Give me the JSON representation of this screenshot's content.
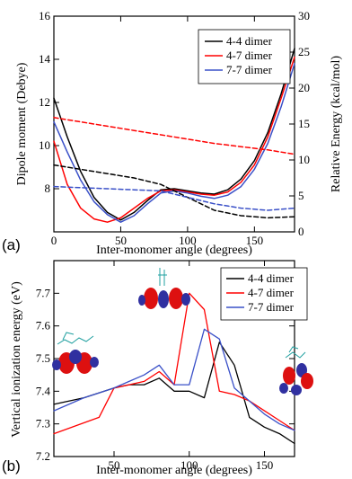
{
  "chart_data": [
    {
      "type": "line",
      "panel_label": "(a)",
      "xlabel": "Inter-monomer angle (degrees)",
      "ylabel": "Dipole moment (Debye)",
      "y2label": "Relative Energy (kcal/mol)",
      "xlim": [
        0,
        180
      ],
      "ylim": [
        6,
        16
      ],
      "y2lim": [
        0,
        30
      ],
      "x_ticks": [
        "0",
        "50",
        "100",
        "150"
      ],
      "y_ticks": [
        "8",
        "10",
        "12",
        "14",
        "16"
      ],
      "y2_ticks": [
        "0",
        "5",
        "10",
        "15",
        "20",
        "25",
        "30"
      ],
      "legend": [
        "4-4 dimer",
        "4-7 dimer",
        "7-7 dimer"
      ],
      "legend_position": "top-right",
      "series": [
        {
          "name": "4-4 dimer",
          "style": "solid",
          "color": "#000000",
          "x": [
            0,
            10,
            20,
            30,
            40,
            50,
            60,
            70,
            80,
            90,
            100,
            110,
            120,
            130,
            140,
            150,
            160,
            170,
            180
          ],
          "y": [
            12.2,
            10.4,
            8.8,
            7.6,
            6.9,
            6.55,
            6.9,
            7.45,
            7.95,
            8.0,
            7.9,
            7.8,
            7.75,
            7.95,
            8.45,
            9.3,
            10.6,
            12.4,
            14.5
          ]
        },
        {
          "name": "4-7 dimer",
          "style": "solid",
          "color": "#ff0000",
          "x": [
            0,
            10,
            20,
            30,
            40,
            50,
            60,
            70,
            80,
            90,
            100,
            110,
            120,
            130,
            140,
            150,
            160,
            170,
            180
          ],
          "y": [
            10.2,
            8.2,
            7.1,
            6.6,
            6.45,
            6.65,
            7.1,
            7.55,
            7.9,
            7.95,
            7.85,
            7.75,
            7.7,
            7.85,
            8.3,
            9.1,
            10.4,
            12.2,
            14.1
          ]
        },
        {
          "name": "7-7 dimer",
          "style": "solid",
          "color": "#3a50c8",
          "x": [
            0,
            10,
            20,
            30,
            40,
            50,
            60,
            70,
            80,
            90,
            100,
            110,
            120,
            130,
            140,
            150,
            160,
            170,
            180
          ],
          "y": [
            11.1,
            9.7,
            8.4,
            7.4,
            6.8,
            6.45,
            6.75,
            7.3,
            7.8,
            7.9,
            7.8,
            7.65,
            7.55,
            7.7,
            8.1,
            8.9,
            10.1,
            11.8,
            13.8
          ]
        },
        {
          "name": "",
          "style": "dashed",
          "color": "#000000",
          "x": [
            0,
            20,
            40,
            60,
            80,
            100,
            120,
            140,
            160,
            180
          ],
          "y": [
            9.1,
            8.9,
            8.7,
            8.5,
            8.2,
            7.6,
            7.0,
            6.75,
            6.65,
            6.7
          ]
        },
        {
          "name": "",
          "style": "dashed",
          "color": "#ff0000",
          "x": [
            0,
            20,
            40,
            60,
            80,
            100,
            120,
            140,
            160,
            180
          ],
          "y": [
            11.3,
            11.1,
            10.9,
            10.7,
            10.5,
            10.3,
            10.1,
            9.95,
            9.8,
            9.6
          ]
        },
        {
          "name": "",
          "style": "dashed",
          "color": "#3a50c8",
          "x": [
            0,
            20,
            40,
            60,
            80,
            100,
            120,
            140,
            160,
            180
          ],
          "y": [
            8.1,
            8.05,
            8.0,
            7.95,
            7.9,
            7.6,
            7.3,
            7.1,
            7.0,
            7.1
          ]
        }
      ]
    },
    {
      "type": "line",
      "panel_label": "(b)",
      "xlabel": "Inter-monomer angle (degrees)",
      "ylabel": "Vertical ionization energy (eV)",
      "xlim": [
        10,
        170
      ],
      "ylim": [
        7.2,
        7.8
      ],
      "x_ticks": [
        "50",
        "100",
        "150"
      ],
      "y_ticks": [
        "7.2",
        "7.3",
        "7.4",
        "7.5",
        "7.6",
        "7.7"
      ],
      "legend": [
        "4-4 dimer",
        "4-7 dimer",
        "7-7 dimer"
      ],
      "legend_position": "top-right",
      "series": [
        {
          "name": "4-4 dimer",
          "color": "#000000",
          "x": [
            10,
            30,
            50,
            60,
            70,
            80,
            90,
            100,
            110,
            120,
            130,
            140,
            150,
            160,
            170
          ],
          "y": [
            7.36,
            7.38,
            7.41,
            7.42,
            7.42,
            7.44,
            7.4,
            7.4,
            7.38,
            7.55,
            7.48,
            7.32,
            7.29,
            7.27,
            7.24
          ]
        },
        {
          "name": "4-7 dimer",
          "color": "#ff0000",
          "x": [
            10,
            40,
            50,
            60,
            70,
            80,
            90,
            100,
            110,
            120,
            130,
            140,
            150,
            160,
            170
          ],
          "y": [
            7.27,
            7.32,
            7.41,
            7.42,
            7.43,
            7.46,
            7.42,
            7.7,
            7.65,
            7.4,
            7.39,
            7.37,
            7.34,
            7.31,
            7.28
          ]
        },
        {
          "name": "7-7 dimer",
          "color": "#3a50c8",
          "x": [
            10,
            30,
            50,
            60,
            70,
            80,
            90,
            100,
            110,
            120,
            130,
            140,
            150,
            160,
            170
          ],
          "y": [
            7.34,
            7.38,
            7.41,
            7.43,
            7.45,
            7.48,
            7.42,
            7.42,
            7.59,
            7.56,
            7.41,
            7.37,
            7.33,
            7.3,
            7.28
          ]
        }
      ]
    }
  ]
}
